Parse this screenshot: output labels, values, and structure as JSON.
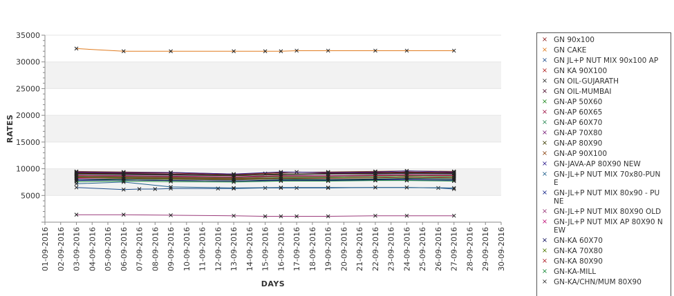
{
  "chart_data": {
    "type": "line",
    "xlabel": "DAYS",
    "ylabel": "RATES",
    "ylim": [
      0,
      35000
    ],
    "yticks": [
      5000,
      10000,
      15000,
      20000,
      25000,
      30000,
      35000
    ],
    "x_range": [
      "01-09-2016",
      "30-09-2016"
    ],
    "x_ticks": [
      "01-09-2016",
      "02-09-2016",
      "03-09-2016",
      "04-09-2016",
      "05-09-2016",
      "06-09-2016",
      "07-09-2016",
      "08-09-2016",
      "09-09-2016",
      "10-09-2016",
      "11-09-2016",
      "12-09-2016",
      "13-09-2016",
      "14-09-2016",
      "15-09-2016",
      "16-09-2016",
      "17-09-2016",
      "18-09-2016",
      "19-09-2016",
      "20-09-2016",
      "21-09-2016",
      "22-09-2016",
      "23-09-2016",
      "24-09-2016",
      "25-09-2016",
      "26-09-2016",
      "27-09-2016",
      "28-09-2016",
      "29-09-2016",
      "30-09-2016"
    ],
    "grid": "horizontal bands",
    "legend_position": "right",
    "series": [
      {
        "name": "GN 90x100",
        "color": "#8b1a1a",
        "x": [
          "03-09-2016",
          "06-09-2016",
          "09-09-2016",
          "13-09-2016",
          "15-09-2016",
          "16-09-2016",
          "17-09-2016",
          "19-09-2016",
          "22-09-2016",
          "24-09-2016",
          "27-09-2016"
        ],
        "values": [
          9300,
          9200,
          9200,
          8900,
          9100,
          9200,
          9400,
          9200,
          9300,
          9400,
          9300
        ]
      },
      {
        "name": "GN CAKE",
        "color": "#e07b1f",
        "x": [
          "03-09-2016",
          "06-09-2016",
          "09-09-2016",
          "13-09-2016",
          "15-09-2016",
          "16-09-2016",
          "17-09-2016",
          "19-09-2016",
          "22-09-2016",
          "24-09-2016",
          "27-09-2016"
        ],
        "values": [
          32500,
          32000,
          32000,
          32000,
          32000,
          32000,
          32100,
          32100,
          32100,
          32100,
          32100
        ]
      },
      {
        "name": "GN JL+P NUT MIX 90x100 AP",
        "color": "#1f4e8c",
        "x": [
          "03-09-2016",
          "06-09-2016",
          "07-09-2016",
          "08-09-2016",
          "09-09-2016",
          "12-09-2016",
          "13-09-2016",
          "15-09-2016",
          "16-09-2016",
          "17-09-2016",
          "19-09-2016",
          "22-09-2016",
          "24-09-2016",
          "26-09-2016",
          "27-09-2016"
        ],
        "values": [
          6500,
          6100,
          6200,
          6200,
          6300,
          6300,
          6300,
          6400,
          6400,
          6400,
          6400,
          6500,
          6500,
          6400,
          6200
        ]
      },
      {
        "name": "GN KA 90X100",
        "color": "#b22222",
        "x": [
          "03-09-2016",
          "06-09-2016",
          "09-09-2016",
          "13-09-2016",
          "16-09-2016",
          "19-09-2016",
          "22-09-2016",
          "24-09-2016",
          "27-09-2016"
        ],
        "values": [
          8500,
          8400,
          8300,
          8200,
          8300,
          8300,
          8400,
          8500,
          8400
        ]
      },
      {
        "name": "GN OIL-GUJARATH",
        "color": "#333333",
        "x": [
          "03-09-2016",
          "06-09-2016",
          "09-09-2016",
          "13-09-2016",
          "16-09-2016",
          "19-09-2016",
          "22-09-2016",
          "24-09-2016",
          "27-09-2016"
        ],
        "values": [
          9000,
          8900,
          8800,
          8700,
          8900,
          9000,
          9000,
          9100,
          9000
        ]
      },
      {
        "name": "GN OIL-MUMBAI",
        "color": "#4b0a2a",
        "x": [
          "03-09-2016",
          "06-09-2016",
          "09-09-2016",
          "13-09-2016",
          "16-09-2016",
          "19-09-2016",
          "22-09-2016",
          "24-09-2016",
          "27-09-2016"
        ],
        "values": [
          9200,
          9100,
          9000,
          8800,
          9000,
          9100,
          9200,
          9300,
          9200
        ]
      },
      {
        "name": "GN-AP 50X60",
        "color": "#228b22",
        "x": [
          "03-09-2016",
          "06-09-2016",
          "09-09-2016",
          "13-09-2016",
          "16-09-2016",
          "19-09-2016",
          "22-09-2016",
          "24-09-2016",
          "27-09-2016"
        ],
        "values": [
          8000,
          8100,
          8000,
          7900,
          8100,
          8000,
          8100,
          8200,
          8100
        ]
      },
      {
        "name": "GN-AP 60X65",
        "color": "#a0184a",
        "x": [
          "03-09-2016",
          "06-09-2016",
          "09-09-2016",
          "13-09-2016",
          "16-09-2016",
          "19-09-2016",
          "22-09-2016",
          "24-09-2016",
          "27-09-2016"
        ],
        "values": [
          8300,
          8200,
          8100,
          8000,
          8200,
          8200,
          8300,
          8400,
          8300
        ]
      },
      {
        "name": "GN-AP 60X70",
        "color": "#2e8b57",
        "x": [
          "03-09-2016",
          "06-09-2016",
          "09-09-2016",
          "13-09-2016",
          "16-09-2016",
          "19-09-2016",
          "22-09-2016",
          "24-09-2016",
          "27-09-2016"
        ],
        "values": [
          8600,
          8500,
          8400,
          8300,
          8500,
          8500,
          8600,
          8700,
          8600
        ]
      },
      {
        "name": "GN-AP 70X80",
        "color": "#7a1f7a",
        "x": [
          "03-09-2016",
          "06-09-2016",
          "09-09-2016",
          "13-09-2016",
          "16-09-2016",
          "19-09-2016",
          "22-09-2016",
          "24-09-2016",
          "27-09-2016"
        ],
        "values": [
          8800,
          8700,
          8600,
          8500,
          8700,
          8700,
          8800,
          8900,
          8800
        ]
      },
      {
        "name": "GN-AP 80X90",
        "color": "#3d3d00",
        "x": [
          "03-09-2016",
          "06-09-2016",
          "09-09-2016",
          "13-09-2016",
          "16-09-2016",
          "19-09-2016",
          "22-09-2016",
          "24-09-2016",
          "27-09-2016"
        ],
        "values": [
          9100,
          9000,
          8900,
          8700,
          8900,
          9000,
          9100,
          9200,
          9100
        ]
      },
      {
        "name": "GN-AP 90X100",
        "color": "#8b4513",
        "x": [
          "03-09-2016",
          "06-09-2016",
          "09-09-2016",
          "13-09-2016",
          "16-09-2016",
          "19-09-2016",
          "22-09-2016",
          "24-09-2016",
          "27-09-2016"
        ],
        "values": [
          9500,
          9400,
          9300,
          9000,
          9300,
          9400,
          9500,
          9600,
          9500
        ]
      },
      {
        "name": "GN-JAVA-AP 80X90 NEW",
        "color": "#2a1a8b",
        "x": [
          "03-09-2016",
          "06-09-2016",
          "09-09-2016",
          "13-09-2016",
          "16-09-2016",
          "19-09-2016",
          "22-09-2016",
          "24-09-2016",
          "27-09-2016"
        ],
        "values": [
          9400,
          9300,
          9300,
          9000,
          9400,
          9300,
          9400,
          9600,
          9400
        ]
      },
      {
        "name": "GN-JL+P NUT MIX 70x80-PUNE",
        "color": "#1f5f8b",
        "x": [
          "03-09-2016",
          "06-09-2016",
          "09-09-2016",
          "13-09-2016",
          "16-09-2016",
          "19-09-2016",
          "22-09-2016",
          "24-09-2016",
          "27-09-2016"
        ],
        "values": [
          7200,
          7500,
          6600,
          6400,
          6500,
          6500,
          6500,
          6500,
          6400
        ]
      },
      {
        "name": "GN-JL+P NUT MIX 80x90 - PUNE",
        "color": "#1a2a8b",
        "x": [
          "03-09-2016",
          "06-09-2016",
          "09-09-2016",
          "13-09-2016",
          "16-09-2016",
          "19-09-2016",
          "22-09-2016",
          "24-09-2016",
          "27-09-2016"
        ],
        "values": [
          7800,
          7900,
          7800,
          7700,
          7800,
          7800,
          7900,
          7900,
          7800
        ]
      },
      {
        "name": "GN-JL+P NUT MIX 80X90 OLD",
        "color": "#9a3a7a",
        "x": [
          "03-09-2016",
          "06-09-2016",
          "09-09-2016",
          "13-09-2016",
          "15-09-2016",
          "16-09-2016",
          "17-09-2016",
          "19-09-2016",
          "22-09-2016",
          "24-09-2016",
          "27-09-2016"
        ],
        "values": [
          1400,
          1400,
          1300,
          1200,
          1100,
          1100,
          1100,
          1100,
          1200,
          1200,
          1200
        ]
      },
      {
        "name": "GN-JL+P NUT MIX AP 80X90 NEW",
        "color": "#c0157a",
        "x": [
          "03-09-2016",
          "06-09-2016",
          "09-09-2016",
          "13-09-2016",
          "16-09-2016",
          "19-09-2016",
          "22-09-2016",
          "24-09-2016",
          "27-09-2016"
        ],
        "values": [
          8200,
          8300,
          8200,
          8100,
          8300,
          8300,
          8400,
          8500,
          8400
        ]
      },
      {
        "name": "GN-KA 60X70",
        "color": "#0a0a5a",
        "x": [
          "03-09-2016",
          "06-09-2016",
          "09-09-2016",
          "13-09-2016",
          "16-09-2016",
          "19-09-2016",
          "22-09-2016",
          "24-09-2016",
          "27-09-2016"
        ],
        "values": [
          8000,
          7900,
          7800,
          7700,
          7900,
          7900,
          8000,
          8100,
          8000
        ]
      },
      {
        "name": "GN-KA 70X80",
        "color": "#4d7a00",
        "x": [
          "03-09-2016",
          "06-09-2016",
          "09-09-2016",
          "13-09-2016",
          "16-09-2016",
          "19-09-2016",
          "22-09-2016",
          "24-09-2016",
          "27-09-2016"
        ],
        "values": [
          8400,
          8300,
          8200,
          8100,
          8300,
          8300,
          8400,
          8500,
          8400
        ]
      },
      {
        "name": "GN-KA 80X90",
        "color": "#b0202a",
        "x": [
          "03-09-2016",
          "06-09-2016",
          "09-09-2016",
          "13-09-2016",
          "16-09-2016",
          "19-09-2016",
          "22-09-2016",
          "24-09-2016",
          "27-09-2016"
        ],
        "values": [
          8700,
          8600,
          8500,
          8400,
          8600,
          8600,
          8700,
          8800,
          8700
        ]
      },
      {
        "name": "GN-KA-MILL",
        "color": "#1a8b3a",
        "x": [
          "03-09-2016",
          "06-09-2016",
          "09-09-2016",
          "13-09-2016",
          "16-09-2016",
          "19-09-2016",
          "22-09-2016",
          "24-09-2016",
          "27-09-2016"
        ],
        "values": [
          7600,
          7700,
          7600,
          7500,
          7700,
          7700,
          7800,
          7800,
          7700
        ]
      },
      {
        "name": "GN-KA/CHN/MUM 80X90",
        "color": "#333333",
        "x": [
          "03-09-2016",
          "06-09-2016",
          "09-09-2016",
          "13-09-2016",
          "16-09-2016",
          "19-09-2016",
          "22-09-2016",
          "24-09-2016",
          "27-09-2016"
        ],
        "values": [
          9000,
          9000,
          8900,
          8800,
          9000,
          9000,
          9100,
          9200,
          9100
        ]
      }
    ]
  }
}
